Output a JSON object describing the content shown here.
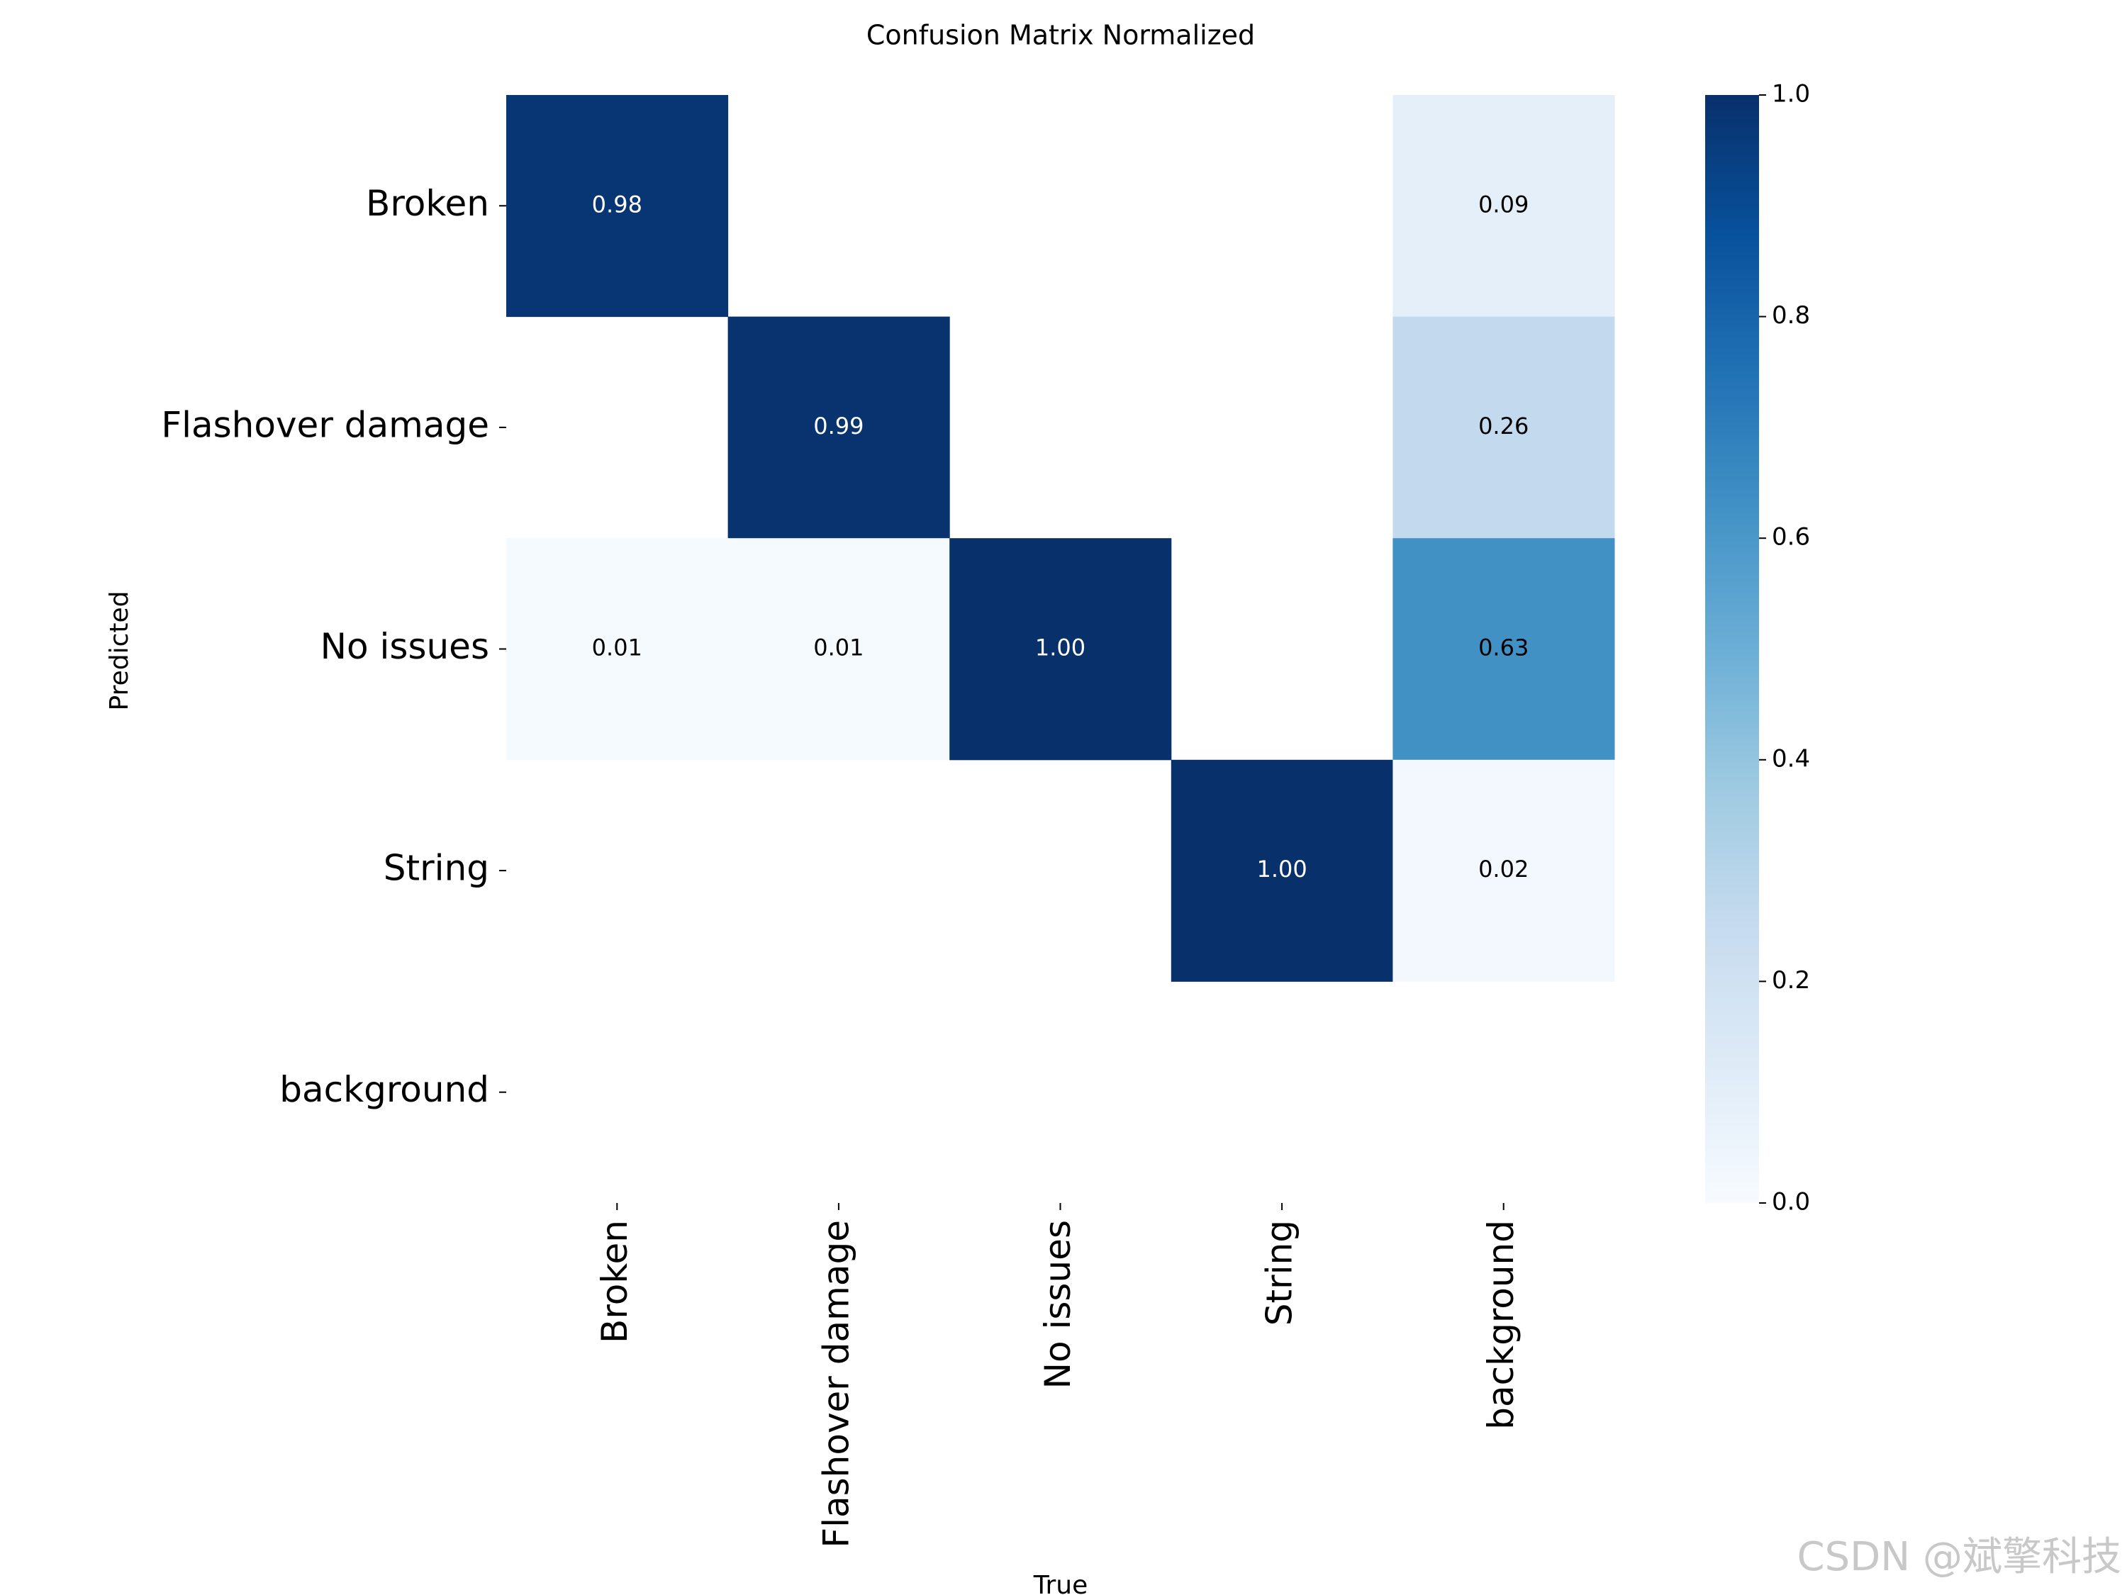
{
  "chart_data": {
    "type": "heatmap",
    "title": "Confusion Matrix Normalized",
    "x_label": "True",
    "y_label": "Predicted",
    "x_categories": [
      "Broken",
      "Flashover damage",
      "No issues",
      "String",
      "background"
    ],
    "y_categories": [
      "Broken",
      "Flashover damage",
      "No issues",
      "String",
      "background"
    ],
    "values": [
      [
        0.98,
        null,
        null,
        null,
        0.09
      ],
      [
        null,
        0.99,
        null,
        null,
        0.26
      ],
      [
        0.01,
        0.01,
        1,
        null,
        0.63
      ],
      [
        null,
        null,
        null,
        1,
        0.02
      ],
      [
        null,
        null,
        null,
        null,
        null
      ]
    ],
    "value_labels": [
      [
        "0.98",
        null,
        null,
        null,
        "0.09"
      ],
      [
        null,
        "0.99",
        null,
        null,
        "0.26"
      ],
      [
        "0.01",
        "0.01",
        "1.00",
        null,
        "0.63"
      ],
      [
        null,
        null,
        null,
        "1.00",
        "0.02"
      ],
      [
        null,
        null,
        null,
        null,
        null
      ]
    ],
    "colormap": "Blues",
    "clim": [
      0,
      1
    ],
    "cticks": [
      {
        "value": 0,
        "label": "0.0"
      },
      0.2,
      0.4,
      0.6,
      0.8,
      {
        "value": 1,
        "label": "1.0"
      }
    ],
    "watermark": "CSDN @斌擎科技"
  }
}
